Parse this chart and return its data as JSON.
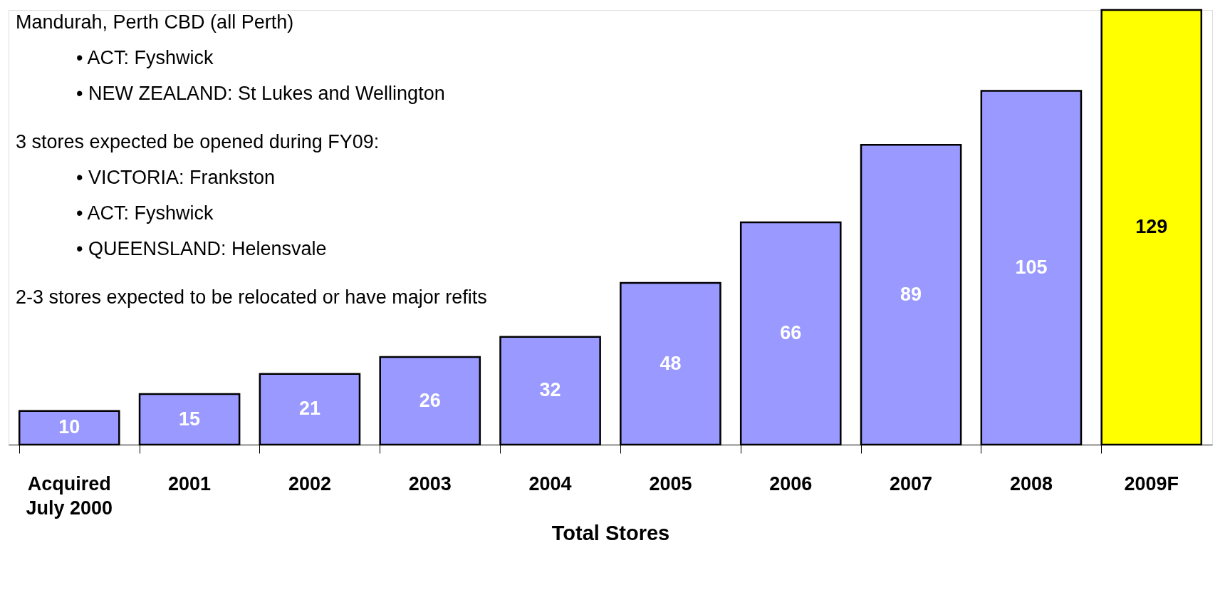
{
  "chart_data": {
    "type": "bar",
    "xlabel": "Total Stores",
    "categories": [
      "Acquired\nJuly 2000",
      "2001",
      "2002",
      "2003",
      "2004",
      "2005",
      "2006",
      "2007",
      "2008",
      "2009F"
    ],
    "values": [
      10,
      15,
      21,
      26,
      32,
      48,
      66,
      89,
      105,
      129
    ],
    "colors": [
      "#9999ff",
      "#9999ff",
      "#9999ff",
      "#9999ff",
      "#9999ff",
      "#9999ff",
      "#9999ff",
      "#9999ff",
      "#9999ff",
      "#ffff00"
    ],
    "data_labels": true,
    "grid": false,
    "annotations": [
      "Mandurah, Perth CBD (all Perth)",
      "• ACT: Fyshwick",
      "• NEW ZEALAND: St Lukes and Wellington",
      "3 stores expected be opened during FY09:",
      "• VICTORIA:  Frankston",
      "• ACT: Fyshwick",
      "• QUEENSLAND: Helensvale",
      "2-3 stores expected to be relocated or have major refits"
    ]
  }
}
